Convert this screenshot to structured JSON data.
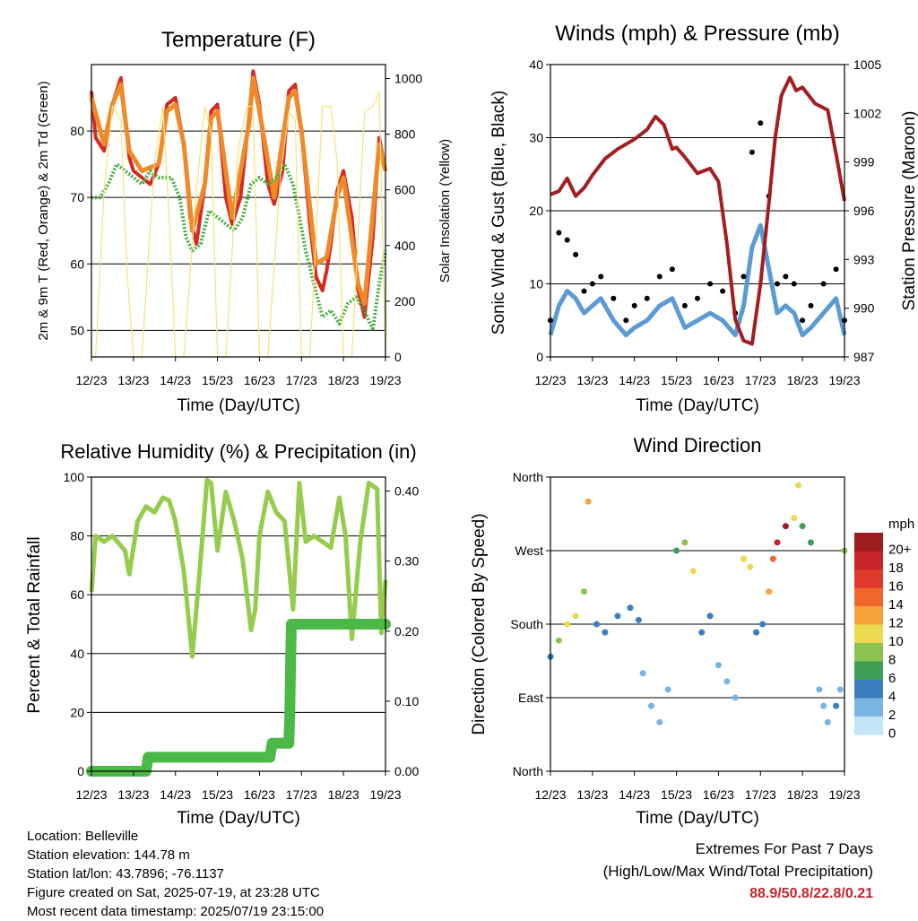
{
  "x_ticks": [
    "12/23",
    "13/23",
    "14/23",
    "15/23",
    "16/23",
    "17/23",
    "18/23",
    "19/23"
  ],
  "colors": {
    "temp_2m": "#d42a24",
    "temp_9m": "#f08a28",
    "dewpoint": "#46ad42",
    "solar": "#f5e27a",
    "wind": "#5b9bd5",
    "gust": "#000000",
    "pressure": "#a31e22",
    "rh": "#95cc4d",
    "precip": "#4cb848"
  },
  "panels": {
    "temperature": {
      "title": "Temperature (F)",
      "ylabel_left": "2m & 9m T (Red, Orange) & 2m Td (Green)",
      "ylabel_right": "Solar Insolation (Yellow)",
      "xlabel": "Time (Day/UTC)"
    },
    "winds": {
      "title": "Winds (mph) & Pressure (mb)",
      "ylabel_left": "Sonic Wind & Gust (Blue, Black)",
      "ylabel_right": "Station Pressure (Maroon)",
      "xlabel": "Time (Day/UTC)"
    },
    "humidity": {
      "title": "Relative Humidity (%) & Precipitation (in)",
      "ylabel_left": "Percent & Total Rainfall",
      "xlabel": "Time (Day/UTC)"
    },
    "direction": {
      "title": "Wind Direction",
      "ylabel_left": "Direction (Colored By Speed)",
      "xlabel": "Time (Day/UTC)",
      "colorbar_title": "mph",
      "colorbar_labels": [
        "20+",
        "18",
        "16",
        "14",
        "12",
        "10",
        "8",
        "6",
        "4",
        "2",
        "0"
      ],
      "colorbar_colors": [
        "#9c1c20",
        "#c8232b",
        "#e0392c",
        "#f0672e",
        "#f6a23c",
        "#ebd94f",
        "#8cc350",
        "#3e9e55",
        "#3a7fc0",
        "#7ab4e0",
        "#c3e3f6"
      ]
    }
  },
  "chart_data": [
    {
      "type": "line",
      "title": "Temperature (F)",
      "xlabel": "Time (Day/UTC)",
      "ylabel": "2m & 9m T (Red, Orange) & 2m Td (Green)",
      "y2label": "Solar Insolation (Yellow)",
      "xlim": [
        12,
        19
      ],
      "ylim": [
        46,
        90
      ],
      "y2lim": [
        0,
        1050
      ],
      "yticks": [
        50,
        60,
        70,
        80
      ],
      "y2ticks": [
        0,
        200,
        400,
        600,
        800,
        1000
      ],
      "grid": true,
      "series": [
        {
          "name": "2m T",
          "axis": "left",
          "x": [
            12.0,
            12.1,
            12.3,
            12.5,
            12.7,
            12.9,
            13.0,
            13.2,
            13.4,
            13.6,
            13.8,
            14.0,
            14.2,
            14.35,
            14.5,
            14.7,
            14.85,
            15.0,
            15.2,
            15.35,
            15.55,
            15.75,
            15.85,
            16.0,
            16.2,
            16.35,
            16.55,
            16.7,
            16.85,
            17.0,
            17.2,
            17.35,
            17.5,
            17.6,
            17.7,
            17.85,
            18.0,
            18.2,
            18.35,
            18.5,
            18.7,
            18.85,
            19.0
          ],
          "y": [
            86,
            79,
            77,
            84,
            88,
            76,
            74,
            73,
            72,
            75,
            84,
            85,
            78,
            67,
            63,
            72,
            83,
            84,
            70,
            66,
            70,
            82,
            89,
            84,
            72,
            69,
            74,
            86,
            87,
            80,
            66,
            58,
            56,
            59,
            63,
            71,
            74,
            67,
            56,
            52,
            64,
            79,
            74
          ]
        },
        {
          "name": "9m T",
          "axis": "left",
          "x": [
            12.0,
            12.3,
            12.5,
            12.7,
            12.9,
            13.2,
            13.6,
            13.8,
            14.0,
            14.2,
            14.4,
            14.7,
            14.85,
            15.0,
            15.35,
            15.75,
            15.85,
            16.0,
            16.35,
            16.7,
            16.85,
            17.0,
            17.35,
            17.6,
            17.85,
            18.0,
            18.35,
            18.5,
            18.85,
            19.0
          ],
          "y": [
            85,
            78,
            84,
            87,
            77,
            74,
            75,
            83,
            84,
            78,
            65,
            72,
            82,
            83,
            67,
            81,
            88,
            83,
            70,
            85,
            86,
            80,
            60,
            61,
            70,
            73,
            57,
            54,
            78,
            74
          ]
        },
        {
          "name": "2m Td",
          "axis": "left",
          "x": [
            12.0,
            12.2,
            12.4,
            12.6,
            12.8,
            13.0,
            13.2,
            13.4,
            13.6,
            13.9,
            14.1,
            14.25,
            14.4,
            14.6,
            14.8,
            15.0,
            15.2,
            15.4,
            15.6,
            15.8,
            16.0,
            16.2,
            16.4,
            16.6,
            16.8,
            16.95,
            17.1,
            17.3,
            17.5,
            17.7,
            17.9,
            18.1,
            18.3,
            18.5,
            18.7,
            18.85,
            19.0
          ],
          "y": [
            70,
            70,
            72,
            75,
            74,
            73,
            72,
            74,
            73,
            73,
            70,
            64,
            62,
            63,
            68,
            67,
            66,
            65,
            67,
            72,
            73,
            72,
            73,
            75,
            72,
            67,
            62,
            57,
            52,
            53,
            51,
            54,
            55,
            53,
            50,
            57,
            62
          ]
        },
        {
          "name": "Solar Insolation",
          "axis": "right",
          "x": [
            12.0,
            12.1,
            12.3,
            12.5,
            12.7,
            12.85,
            13.0,
            13.2,
            13.5,
            13.7,
            13.85,
            14.0,
            14.2,
            14.5,
            14.7,
            14.85,
            15.0,
            15.2,
            15.5,
            15.7,
            15.85,
            16.0,
            16.2,
            16.5,
            16.7,
            16.85,
            17.0,
            17.2,
            17.5,
            17.7,
            17.85,
            18.0,
            18.2,
            18.5,
            18.7,
            18.85,
            19.0
          ],
          "y": [
            0,
            0,
            600,
            900,
            850,
            300,
            0,
            0,
            700,
            900,
            500,
            0,
            0,
            600,
            900,
            800,
            0,
            0,
            750,
            900,
            900,
            0,
            0,
            650,
            880,
            850,
            0,
            0,
            900,
            900,
            700,
            0,
            0,
            880,
            900,
            950,
            0
          ]
        }
      ]
    },
    {
      "type": "line",
      "title": "Winds (mph) & Pressure (mb)",
      "xlabel": "Time (Day/UTC)",
      "ylabel": "Sonic Wind & Gust (Blue, Black)",
      "y2label": "Station Pressure (Maroon)",
      "xlim": [
        12,
        19
      ],
      "ylim": [
        0,
        40
      ],
      "y2lim": [
        987,
        1005
      ],
      "yticks": [
        0,
        10,
        20,
        30,
        40
      ],
      "y2ticks": [
        987,
        990,
        993,
        996,
        999,
        1002,
        1005
      ],
      "grid": true,
      "series": [
        {
          "name": "Sonic Wind",
          "axis": "left",
          "x": [
            12.0,
            12.2,
            12.4,
            12.6,
            12.8,
            13.0,
            13.2,
            13.5,
            13.8,
            14.0,
            14.3,
            14.6,
            14.9,
            15.2,
            15.5,
            15.8,
            16.1,
            16.4,
            16.6,
            16.8,
            17.0,
            17.2,
            17.4,
            17.6,
            17.8,
            18.0,
            18.2,
            18.5,
            18.8,
            19.0
          ],
          "y": [
            3,
            7,
            9,
            8,
            6,
            7,
            8,
            5,
            3,
            4,
            5,
            7,
            8,
            4,
            5,
            6,
            5,
            3,
            7,
            15,
            18,
            12,
            6,
            7,
            6,
            3,
            4,
            6,
            8,
            3
          ]
        },
        {
          "name": "Gust",
          "axis": "left",
          "x": [
            12.0,
            12.2,
            12.4,
            12.6,
            12.8,
            13.0,
            13.2,
            13.5,
            13.8,
            14.0,
            14.3,
            14.6,
            14.9,
            15.2,
            15.5,
            15.8,
            16.1,
            16.4,
            16.6,
            16.8,
            17.0,
            17.2,
            17.4,
            17.6,
            17.8,
            18.0,
            18.2,
            18.5,
            18.8,
            19.0
          ],
          "y": [
            5,
            17,
            16,
            14,
            9,
            10,
            11,
            8,
            5,
            7,
            8,
            11,
            12,
            7,
            8,
            10,
            9,
            6,
            11,
            28,
            32,
            22,
            10,
            11,
            10,
            5,
            7,
            10,
            12,
            5
          ]
        },
        {
          "name": "Station Pressure",
          "axis": "right",
          "x": [
            12.0,
            12.2,
            12.4,
            12.6,
            12.8,
            13.0,
            13.3,
            13.6,
            14.0,
            14.3,
            14.5,
            14.7,
            14.9,
            15.0,
            15.2,
            15.5,
            15.8,
            16.0,
            16.2,
            16.4,
            16.6,
            16.8,
            17.0,
            17.2,
            17.35,
            17.5,
            17.7,
            17.85,
            18.0,
            18.3,
            18.6,
            18.8,
            19.0
          ],
          "y": [
            997.0,
            997.2,
            998.0,
            996.9,
            997.4,
            998.2,
            999.2,
            999.8,
            1000.4,
            1001.0,
            1001.8,
            1001.3,
            999.8,
            999.9,
            999.3,
            998.3,
            998.6,
            997.8,
            994.0,
            989.3,
            988.0,
            987.8,
            991.5,
            996.5,
            1000.5,
            1003.1,
            1004.2,
            1003.4,
            1003.6,
            1002.6,
            1002.2,
            999.5,
            996.6
          ]
        }
      ]
    },
    {
      "type": "line",
      "title": "Relative Humidity (%) & Precipitation (in)",
      "xlabel": "Time (Day/UTC)",
      "ylabel": "Percent & Total Rainfall",
      "xlim": [
        12,
        19
      ],
      "ylim": [
        0,
        100
      ],
      "y2lim": [
        0,
        0.42
      ],
      "yticks": [
        0,
        20,
        40,
        60,
        80,
        100
      ],
      "y2ticks": [
        0.0,
        0.1,
        0.2,
        0.3,
        0.4
      ],
      "y2ticklabels": [
        "0.00",
        "0.10",
        "0.20",
        "0.30",
        "0.40"
      ],
      "grid": true,
      "series": [
        {
          "name": "Relative Humidity",
          "axis": "left",
          "x": [
            12.0,
            12.1,
            12.3,
            12.5,
            12.8,
            12.9,
            13.1,
            13.3,
            13.5,
            13.7,
            13.85,
            14.0,
            14.2,
            14.4,
            14.6,
            14.75,
            14.85,
            15.0,
            15.2,
            15.4,
            15.6,
            15.8,
            15.9,
            16.0,
            16.2,
            16.4,
            16.6,
            16.8,
            16.95,
            17.1,
            17.3,
            17.5,
            17.7,
            17.9,
            18.05,
            18.2,
            18.4,
            18.6,
            18.8,
            18.9,
            19.0
          ],
          "y": [
            61,
            80,
            78,
            80,
            75,
            67,
            85,
            90,
            88,
            93,
            92,
            85,
            68,
            39,
            72,
            99,
            98,
            75,
            95,
            85,
            72,
            48,
            55,
            80,
            95,
            88,
            85,
            55,
            98,
            78,
            80,
            78,
            76,
            93,
            80,
            45,
            78,
            98,
            96,
            47,
            65
          ]
        },
        {
          "name": "Total Precipitation",
          "axis": "right",
          "x": [
            12.0,
            12.5,
            13.0,
            13.3,
            13.35,
            13.5,
            14.0,
            14.5,
            15.0,
            15.5,
            16.0,
            16.25,
            16.3,
            16.5,
            16.7,
            16.72,
            16.74,
            16.76,
            17.0,
            17.5,
            18.0,
            18.5,
            19.0
          ],
          "y": [
            0,
            0,
            0,
            0,
            0.02,
            0.02,
            0.02,
            0.02,
            0.02,
            0.02,
            0.02,
            0.02,
            0.04,
            0.04,
            0.04,
            0.08,
            0.15,
            0.21,
            0.21,
            0.21,
            0.21,
            0.21,
            0.21
          ]
        }
      ]
    },
    {
      "type": "scatter",
      "title": "Wind Direction",
      "xlabel": "Time (Day/UTC)",
      "ylabel": "Direction (Colored By Speed)",
      "xlim": [
        12,
        19
      ],
      "ylim": [
        0,
        360
      ],
      "yticks": [
        0,
        90,
        180,
        270,
        360
      ],
      "yticklabels": [
        "North",
        "East",
        "South",
        "West",
        "North"
      ],
      "grid": true,
      "series": [
        {
          "name": "Direction",
          "axis": "left",
          "x": [
            12.0,
            12.2,
            12.4,
            12.6,
            12.8,
            12.9,
            13.1,
            13.3,
            13.6,
            13.9,
            14.1,
            14.2,
            14.4,
            14.6,
            14.8,
            15.0,
            15.2,
            15.4,
            15.6,
            15.8,
            16.0,
            16.2,
            16.4,
            16.6,
            16.75,
            16.9,
            17.05,
            17.2,
            17.3,
            17.4,
            17.6,
            17.8,
            17.9,
            18.0,
            18.2,
            18.4,
            18.5,
            18.6,
            18.8,
            18.9,
            19.0
          ],
          "y": [
            140,
            160,
            180,
            190,
            220,
            330,
            180,
            170,
            190,
            200,
            185,
            120,
            80,
            60,
            100,
            270,
            280,
            245,
            170,
            190,
            130,
            110,
            90,
            260,
            250,
            170,
            180,
            220,
            260,
            280,
            300,
            310,
            350,
            300,
            280,
            100,
            80,
            60,
            80,
            100,
            270
          ],
          "speed": [
            3,
            8,
            10,
            9,
            8,
            11,
            4,
            3,
            4,
            3,
            3,
            2,
            2,
            1,
            2,
            5,
            7,
            9,
            4,
            3,
            2,
            2,
            1,
            10,
            9,
            3,
            4,
            12,
            14,
            18,
            20,
            9,
            9,
            5,
            6,
            2,
            2,
            2,
            3,
            2,
            7
          ]
        }
      ]
    }
  ],
  "info": {
    "location": "Location: Belleville",
    "elevation": "Station elevation: 144.78 m",
    "latlon": "Station lat/lon: 43.7896; -76.1137",
    "created": "Figure created on Sat, 2025-07-19, at 23:28 UTC",
    "recent": "Most recent data timestamp: 2025/07/19 23:15:00"
  },
  "extremes": {
    "title": "Extremes For Past 7 Days",
    "subtitle": "(High/Low/Max Wind/Total Precipitation)",
    "values": "88.9/50.8/22.8/0.21"
  }
}
